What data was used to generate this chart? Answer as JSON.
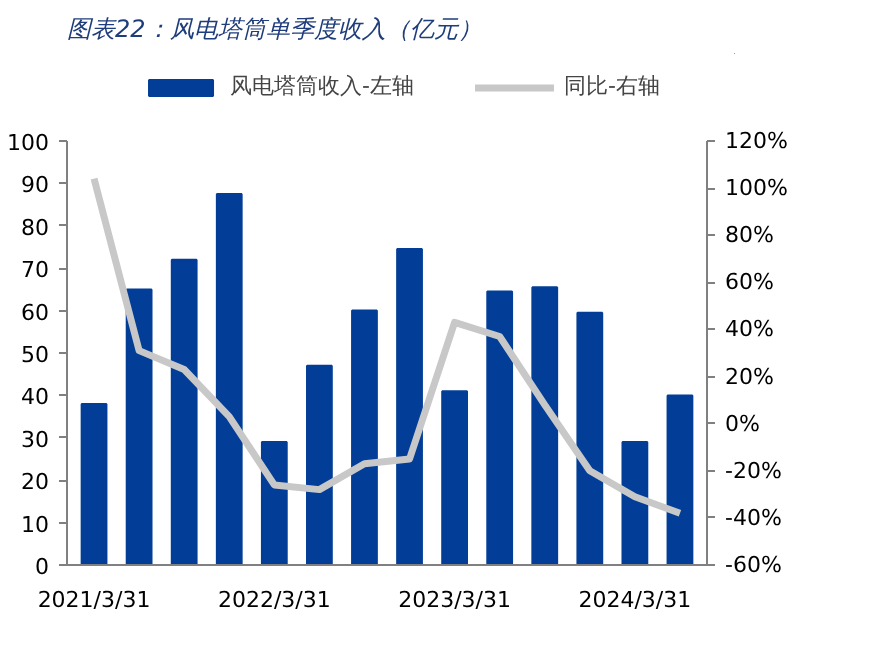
{
  "chart_data": {
    "type": "bar",
    "title": "图表22：风电塔筒单季度收入（亿元）",
    "categories": [
      "2021/3/31",
      null,
      null,
      null,
      "2022/3/31",
      null,
      null,
      null,
      "2023/3/31",
      null,
      null,
      null,
      "2024/3/31",
      null
    ],
    "series": [
      {
        "name": "风电塔筒收入-左轴",
        "color": "#023e97",
        "values": [
          38,
          65,
          72,
          87.5,
          29,
          47,
          60,
          74.5,
          41,
          64.5,
          65.5,
          59.5,
          29,
          40
        ]
      },
      {
        "name": "同比-右轴",
        "type": "line",
        "axis": "y2",
        "color": "#c8c8c8",
        "values": [
          104,
          31,
          23,
          3,
          -26,
          -28,
          -17,
          -15,
          43,
          37,
          8,
          -20,
          -31,
          -38
        ]
      }
    ],
    "ylim": [
      0,
      100
    ],
    "yticks": [
      0,
      10,
      20,
      30,
      40,
      50,
      60,
      70,
      80,
      90,
      100
    ],
    "y2lim": [
      -60,
      120
    ],
    "y2ticks": [
      {
        "value": -60,
        "label": "-60%"
      },
      {
        "value": -40,
        "label": "-40%"
      },
      {
        "value": -20,
        "label": "-20%"
      },
      {
        "value": 0,
        "label": "0%"
      },
      {
        "value": 20,
        "label": "20%"
      },
      {
        "value": 40,
        "label": "40%"
      },
      {
        "value": 60,
        "label": "60%"
      },
      {
        "value": 80,
        "label": "80%"
      },
      {
        "value": 100,
        "label": "100%"
      },
      {
        "value": 120,
        "label": "120%"
      }
    ],
    "grid": false,
    "legend": "top"
  }
}
